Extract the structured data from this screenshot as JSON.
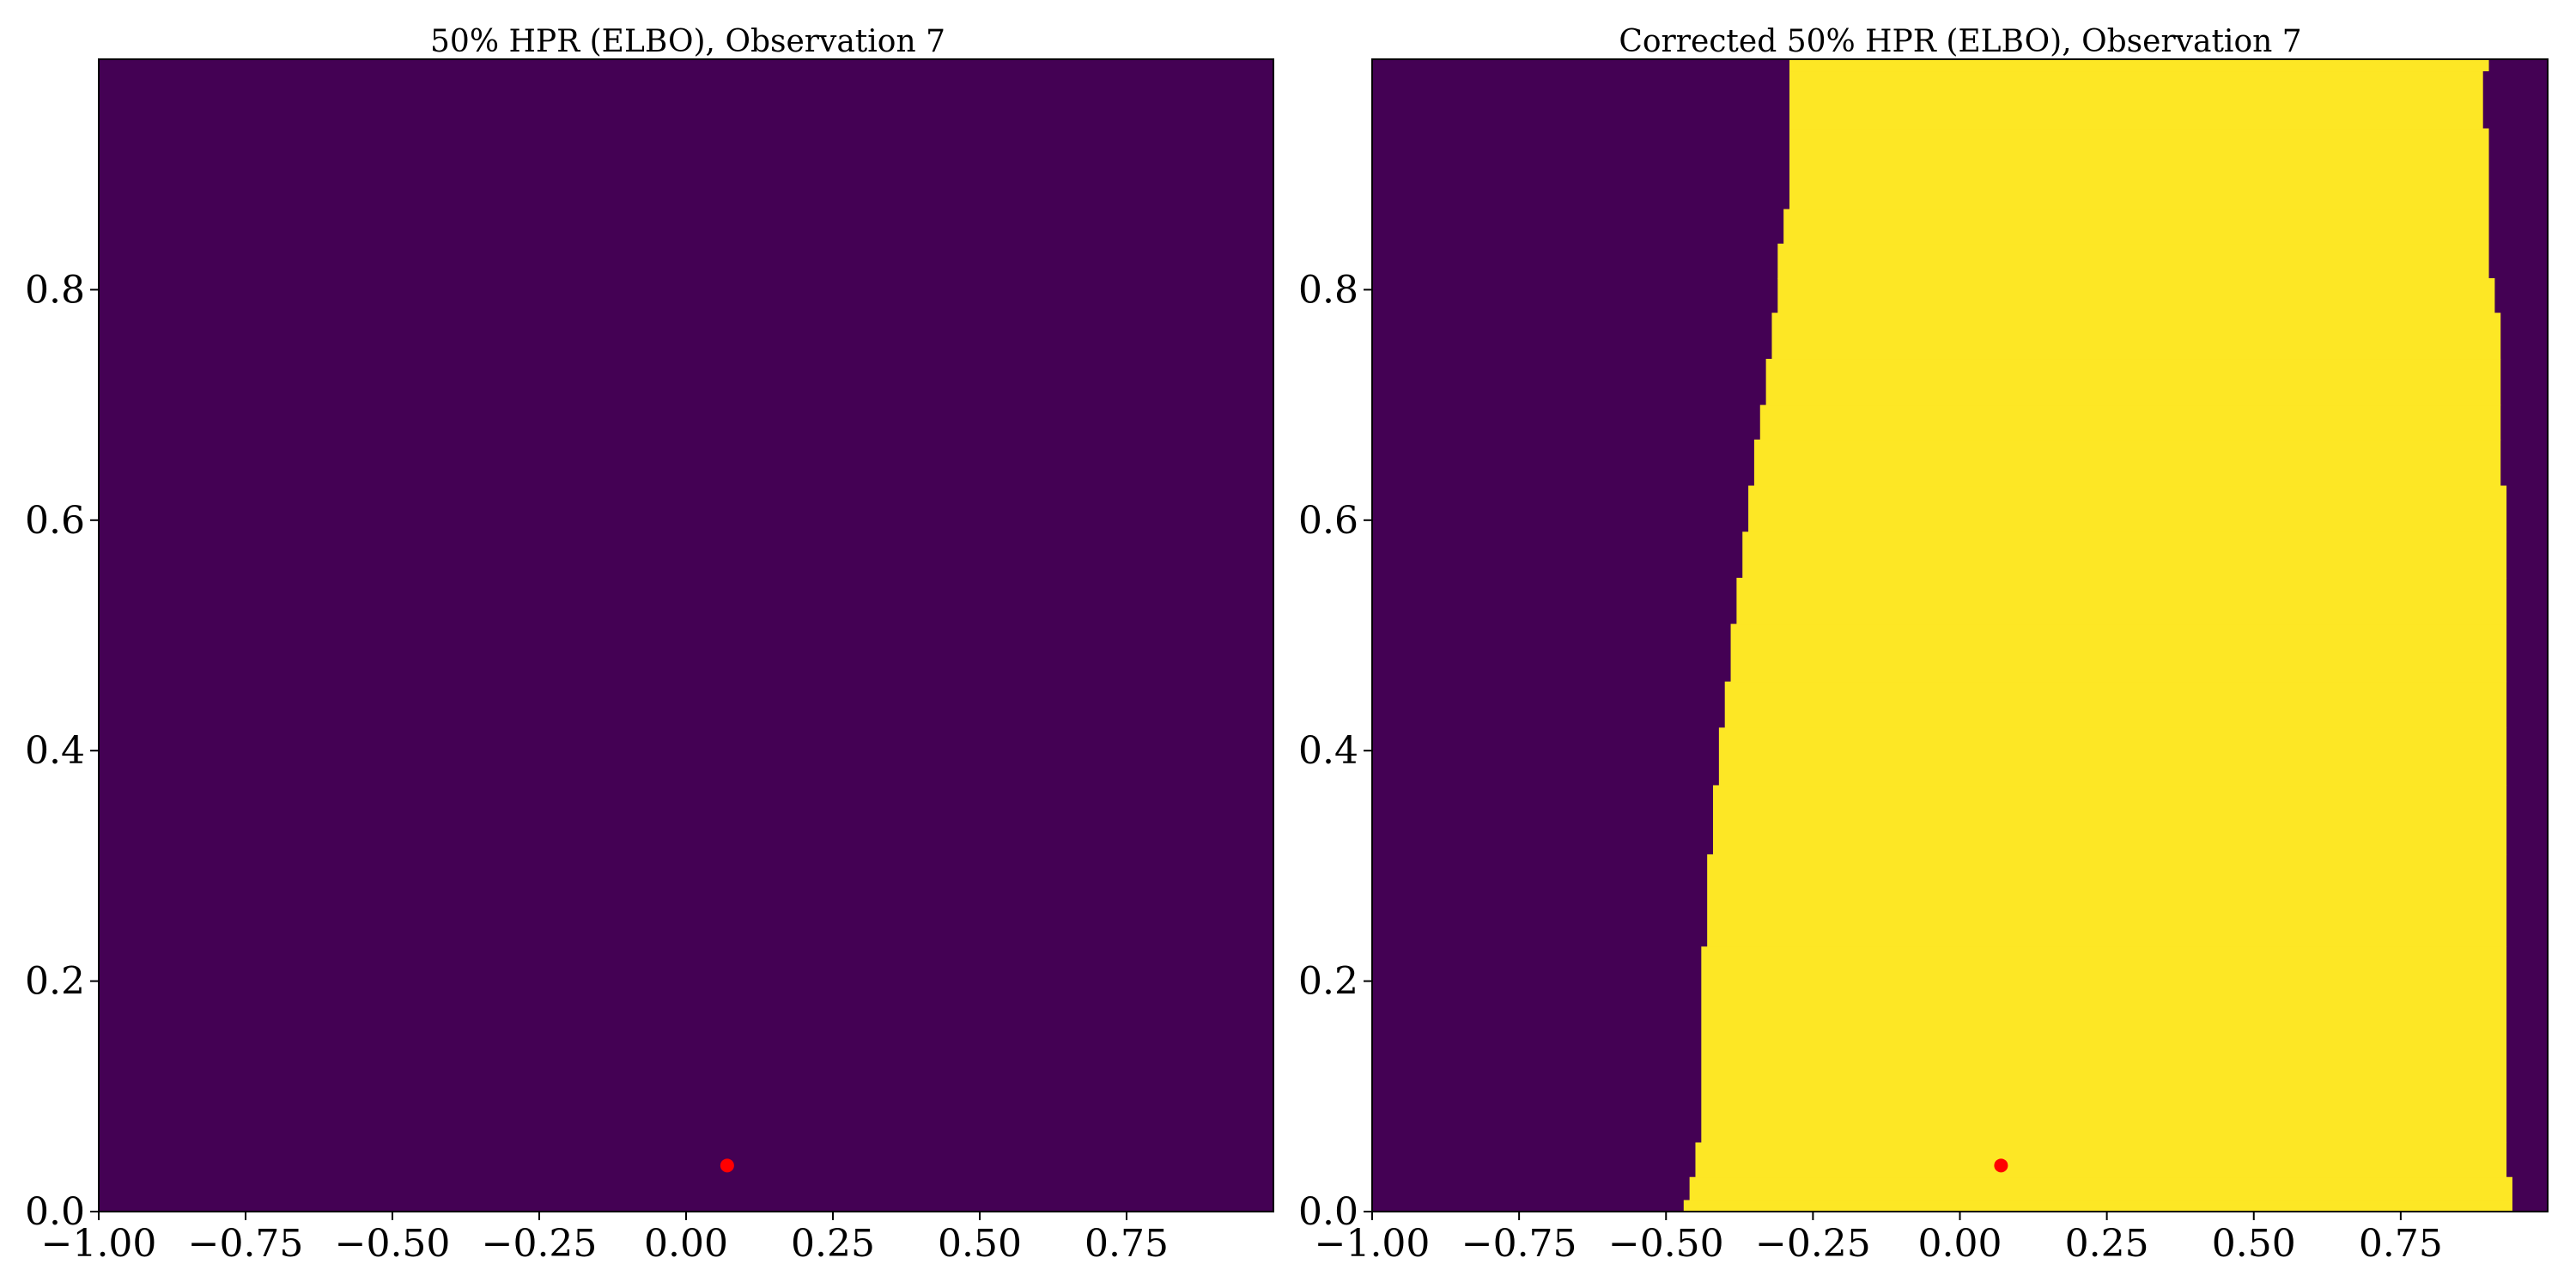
{
  "chart_data": [
    {
      "type": "heatmap",
      "title": "50% HPR (ELBO), Observation 7",
      "xlabel": "",
      "ylabel": "",
      "xlim": [
        -1.0,
        1.0
      ],
      "ylim": [
        0.0,
        1.0
      ],
      "x_ticks": [
        "−1.00",
        "−0.75",
        "−0.50",
        "−0.25",
        "0.00",
        "0.25",
        "0.50",
        "0.75"
      ],
      "y_ticks": [
        "0.0",
        "0.2",
        "0.4",
        "0.6",
        "0.8"
      ],
      "grid": false,
      "inside_color": "#fde725",
      "outside_color": "#440154",
      "region": [],
      "observation": {
        "x": 0.07,
        "y": 0.04,
        "color": "#ff0000"
      }
    },
    {
      "type": "heatmap",
      "title": "Corrected 50% HPR (ELBO), Observation 7",
      "xlabel": "",
      "ylabel": "",
      "xlim": [
        -1.0,
        1.0
      ],
      "ylim": [
        0.0,
        1.0
      ],
      "x_ticks": [
        "−1.00",
        "−0.75",
        "−0.50",
        "−0.25",
        "0.00",
        "0.25",
        "0.50",
        "0.75"
      ],
      "y_ticks": [
        "0.0",
        "0.2",
        "0.4",
        "0.6",
        "0.8"
      ],
      "grid": false,
      "inside_color": "#fde725",
      "outside_color": "#440154",
      "region": [
        {
          "y0": 0.0,
          "y1": 0.01,
          "x_left": -0.47,
          "x_right": 0.94
        },
        {
          "y0": 0.01,
          "y1": 0.03,
          "x_left": -0.46,
          "x_right": 0.94
        },
        {
          "y0": 0.03,
          "y1": 0.06,
          "x_left": -0.45,
          "x_right": 0.93
        },
        {
          "y0": 0.06,
          "y1": 0.23,
          "x_left": -0.44,
          "x_right": 0.93
        },
        {
          "y0": 0.23,
          "y1": 0.31,
          "x_left": -0.43,
          "x_right": 0.93
        },
        {
          "y0": 0.31,
          "y1": 0.37,
          "x_left": -0.42,
          "x_right": 0.93
        },
        {
          "y0": 0.37,
          "y1": 0.42,
          "x_left": -0.41,
          "x_right": 0.93
        },
        {
          "y0": 0.42,
          "y1": 0.46,
          "x_left": -0.4,
          "x_right": 0.93
        },
        {
          "y0": 0.46,
          "y1": 0.51,
          "x_left": -0.39,
          "x_right": 0.93
        },
        {
          "y0": 0.51,
          "y1": 0.55,
          "x_left": -0.38,
          "x_right": 0.93
        },
        {
          "y0": 0.55,
          "y1": 0.59,
          "x_left": -0.37,
          "x_right": 0.93
        },
        {
          "y0": 0.59,
          "y1": 0.63,
          "x_left": -0.36,
          "x_right": 0.93
        },
        {
          "y0": 0.63,
          "y1": 0.67,
          "x_left": -0.35,
          "x_right": 0.92
        },
        {
          "y0": 0.67,
          "y1": 0.7,
          "x_left": -0.34,
          "x_right": 0.92
        },
        {
          "y0": 0.7,
          "y1": 0.74,
          "x_left": -0.33,
          "x_right": 0.92
        },
        {
          "y0": 0.74,
          "y1": 0.78,
          "x_left": -0.32,
          "x_right": 0.92
        },
        {
          "y0": 0.78,
          "y1": 0.81,
          "x_left": -0.31,
          "x_right": 0.91
        },
        {
          "y0": 0.81,
          "y1": 0.84,
          "x_left": -0.31,
          "x_right": 0.9
        },
        {
          "y0": 0.84,
          "y1": 0.87,
          "x_left": -0.3,
          "x_right": 0.9
        },
        {
          "y0": 0.87,
          "y1": 0.94,
          "x_left": -0.29,
          "x_right": 0.9
        },
        {
          "y0": 0.94,
          "y1": 0.99,
          "x_left": -0.29,
          "x_right": 0.89
        },
        {
          "y0": 0.99,
          "y1": 1.0,
          "x_left": -0.29,
          "x_right": 0.9
        }
      ],
      "observation": {
        "x": 0.07,
        "y": 0.04,
        "color": "#ff0000"
      }
    }
  ]
}
